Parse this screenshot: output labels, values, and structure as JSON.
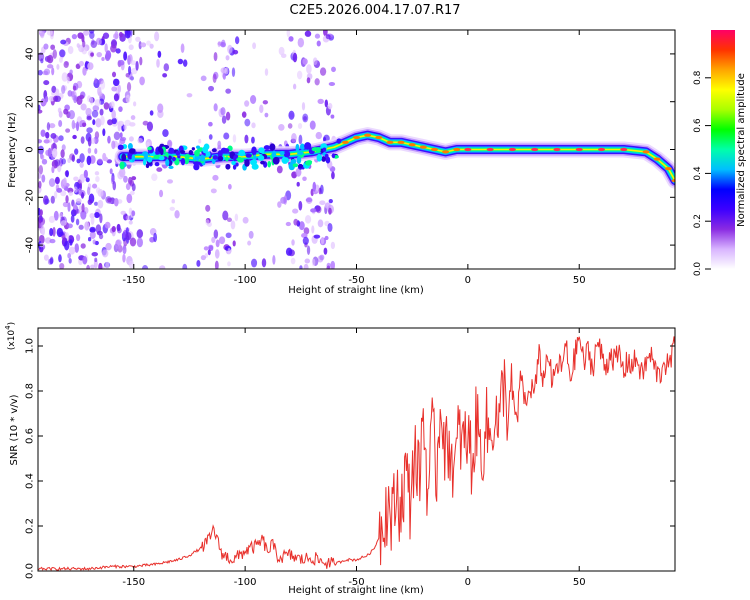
{
  "title": "C2E5.2026.004.17.07.R17",
  "chart_data": [
    {
      "type": "heatmap",
      "xlabel": "Height of straight line (km)",
      "ylabel": "Frequency (Hz)",
      "xlim": [
        -193,
        93
      ],
      "ylim": [
        -50,
        50
      ],
      "xticks": [
        -150,
        -100,
        -50,
        0,
        50
      ],
      "xtick_labels": [
        "-150",
        "-100",
        "-50",
        "0",
        "50"
      ],
      "yticks": [
        -40,
        -20,
        0,
        20,
        40
      ],
      "ytick_labels": [
        "-40",
        "-20",
        "0",
        "20",
        "40"
      ],
      "colorbar": {
        "label": "Normalized spectral amplitude",
        "range": [
          0,
          1
        ],
        "ticks": [
          0.0,
          0.2,
          0.4,
          0.6,
          0.8
        ],
        "tick_labels": [
          "0.0",
          "0.2",
          "0.4",
          "0.6",
          "0.8"
        ],
        "colormap": [
          "#ffffff",
          "#d8b4ff",
          "#8a2be2",
          "#3c00ff",
          "#0000ff",
          "#00bfff",
          "#00ffaa",
          "#00ff00",
          "#aaff00",
          "#ffff00",
          "#ffa500",
          "#ff3300",
          "#ff0066"
        ]
      },
      "ridge": {
        "x": [
          -155,
          -140,
          -130,
          -120,
          -110,
          -100,
          -90,
          -80,
          -70,
          -60,
          -55,
          -50,
          -45,
          -40,
          -35,
          -30,
          -25,
          -20,
          -15,
          -10,
          -5,
          0,
          10,
          20,
          30,
          40,
          50,
          60,
          70,
          80,
          85,
          90,
          93
        ],
        "frequency": [
          -3,
          -3,
          -3,
          -4,
          -3,
          -3,
          -2,
          -2,
          -1,
          1,
          3,
          5,
          6,
          5,
          3,
          3,
          2,
          1,
          0,
          -1,
          0,
          0,
          0,
          0,
          0,
          0,
          0,
          0,
          0,
          -1,
          -4,
          -8,
          -13
        ]
      }
    },
    {
      "type": "line",
      "xlabel": "Height of straight line (km)",
      "ylabel": "SNR (10 * v/v)",
      "y_multiplier_label": "(x10",
      "y_multiplier_exp": "4",
      "y_multiplier_close": ")",
      "xlim": [
        -193,
        93
      ],
      "ylim": [
        0,
        1.08
      ],
      "xticks": [
        -150,
        -100,
        -50,
        0,
        50
      ],
      "xtick_labels": [
        "-150",
        "-100",
        "-50",
        "0",
        "50"
      ],
      "yticks": [
        0.0,
        0.2,
        0.4,
        0.6,
        0.8,
        1.0
      ],
      "ytick_labels": [
        "0.0",
        "0.2",
        "0.4",
        "0.6",
        "0.8",
        "1.0"
      ],
      "series": [
        {
          "name": "SNR",
          "color": "#e8312c",
          "x": [
            -193,
            -180,
            -170,
            -160,
            -150,
            -140,
            -130,
            -125,
            -120,
            -116,
            -114,
            -112,
            -110,
            -105,
            -100,
            -95,
            -92,
            -90,
            -88,
            -85,
            -80,
            -75,
            -70,
            -65,
            -60,
            -55,
            -50,
            -45,
            -42,
            -40,
            -38,
            -36,
            -34,
            -32,
            -30,
            -28,
            -26,
            -24,
            -22,
            -20,
            -18,
            -16,
            -14,
            -12,
            -10,
            -8,
            -6,
            -4,
            -2,
            0,
            2,
            4,
            6,
            8,
            10,
            12,
            14,
            16,
            18,
            20,
            22,
            24,
            26,
            28,
            30,
            32,
            34,
            36,
            38,
            40,
            42,
            44,
            46,
            48,
            50,
            52,
            54,
            56,
            58,
            60,
            62,
            64,
            66,
            68,
            70,
            72,
            74,
            76,
            78,
            80,
            82,
            84,
            86,
            88,
            90,
            93
          ],
          "values": [
            0.01,
            0.01,
            0.01,
            0.02,
            0.02,
            0.03,
            0.05,
            0.07,
            0.1,
            0.14,
            0.19,
            0.12,
            0.07,
            0.05,
            0.09,
            0.11,
            0.14,
            0.08,
            0.12,
            0.06,
            0.07,
            0.05,
            0.06,
            0.04,
            0.03,
            0.05,
            0.05,
            0.07,
            0.1,
            0.15,
            0.25,
            0.3,
            0.22,
            0.35,
            0.28,
            0.45,
            0.3,
            0.55,
            0.4,
            0.7,
            0.35,
            0.6,
            0.45,
            0.8,
            0.5,
            0.58,
            0.42,
            0.62,
            0.55,
            0.6,
            0.48,
            0.68,
            0.5,
            0.66,
            0.58,
            0.72,
            0.62,
            0.85,
            0.7,
            0.78,
            0.65,
            0.88,
            0.72,
            0.82,
            0.8,
            0.95,
            0.85,
            0.98,
            0.82,
            0.92,
            0.9,
            1.0,
            0.86,
            0.95,
            1.05,
            0.92,
            0.98,
            0.9,
            1.02,
            0.96,
            0.9,
            0.98,
            0.93,
            0.96,
            0.88,
            0.94,
            0.91,
            0.95,
            0.87,
            0.92,
            0.96,
            0.9,
            0.86,
            0.94,
            0.9,
            1.0
          ]
        }
      ]
    }
  ]
}
